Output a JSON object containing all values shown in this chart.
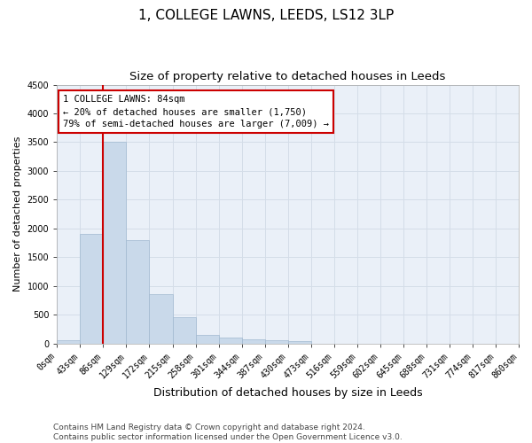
{
  "title": "1, COLLEGE LAWNS, LEEDS, LS12 3LP",
  "subtitle": "Size of property relative to detached houses in Leeds",
  "xlabel": "Distribution of detached houses by size in Leeds",
  "ylabel": "Number of detached properties",
  "bar_values": [
    50,
    1900,
    3500,
    1800,
    850,
    450,
    150,
    100,
    70,
    55,
    40,
    0,
    0,
    0,
    0,
    0,
    0,
    0,
    0,
    0
  ],
  "bar_labels": [
    "0sqm",
    "43sqm",
    "86sqm",
    "129sqm",
    "172sqm",
    "215sqm",
    "258sqm",
    "301sqm",
    "344sqm",
    "387sqm",
    "430sqm",
    "473sqm",
    "516sqm",
    "559sqm",
    "602sqm",
    "645sqm",
    "688sqm",
    "731sqm",
    "774sqm",
    "817sqm",
    "860sqm"
  ],
  "bar_color": "#c9d9ea",
  "bar_edge_color": "#a0b8d0",
  "grid_color": "#d4dde8",
  "bg_color": "#eaf0f8",
  "vline_color": "#cc0000",
  "annotation_text": "1 COLLEGE LAWNS: 84sqm\n← 20% of detached houses are smaller (1,750)\n79% of semi-detached houses are larger (7,009) →",
  "annotation_box_color": "#cc0000",
  "ylim": [
    0,
    4500
  ],
  "yticks": [
    0,
    500,
    1000,
    1500,
    2000,
    2500,
    3000,
    3500,
    4000,
    4500
  ],
  "footer": "Contains HM Land Registry data © Crown copyright and database right 2024.\nContains public sector information licensed under the Open Government Licence v3.0.",
  "title_fontsize": 11,
  "subtitle_fontsize": 9.5,
  "xlabel_fontsize": 9,
  "ylabel_fontsize": 8,
  "tick_fontsize": 7,
  "annotation_fontsize": 7.5,
  "footer_fontsize": 6.5
}
